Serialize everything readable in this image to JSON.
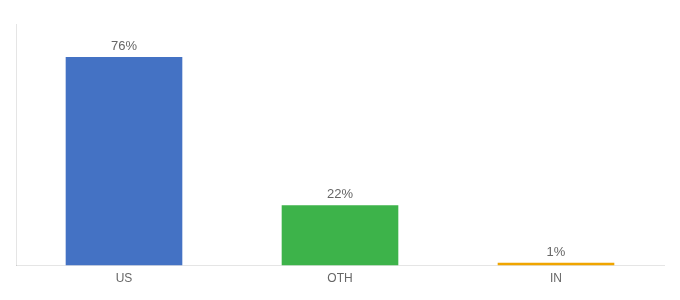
{
  "chart_data": {
    "type": "bar",
    "categories": [
      "US",
      "OTH",
      "IN"
    ],
    "values": [
      76,
      22,
      1
    ],
    "value_labels": [
      "76%",
      "22%",
      "1%"
    ],
    "colors": [
      "#4472c4",
      "#3db34a",
      "#f0a500"
    ],
    "data_labels": true,
    "ylim": [
      0,
      88
    ],
    "tick_labels": "x",
    "grid": false
  }
}
